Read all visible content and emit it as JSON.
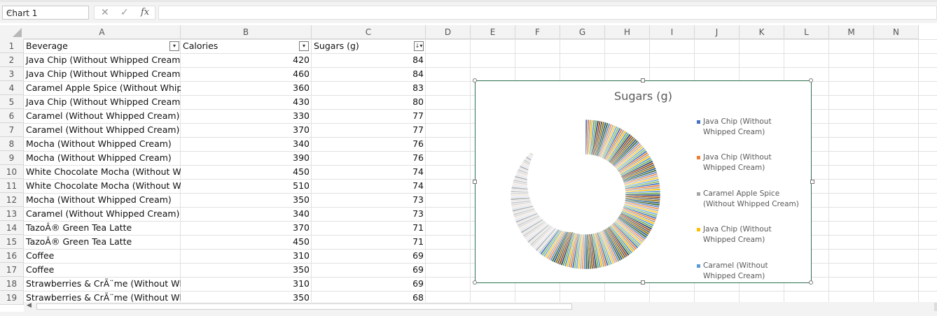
{
  "namebox": {
    "value": "Chart 1"
  },
  "formula": {
    "cancel_icon": "✕",
    "enter_icon": "✓",
    "fx": "fx",
    "value": ""
  },
  "columns": [
    "A",
    "B",
    "C",
    "D",
    "E",
    "F",
    "G",
    "H",
    "I",
    "J",
    "K",
    "L",
    "M",
    "N"
  ],
  "rows": [
    "1",
    "2",
    "3",
    "4",
    "5",
    "6",
    "7",
    "8",
    "9",
    "10",
    "11",
    "12",
    "13",
    "14",
    "15",
    "16",
    "17",
    "18",
    "19"
  ],
  "headers": {
    "beverage": "Beverage",
    "calories": "Calories",
    "sugars": "Sugars (g)"
  },
  "table": [
    {
      "beverage": "Java Chip (Without Whipped Cream)",
      "calories": "420",
      "sugars": "84"
    },
    {
      "beverage": "Java Chip (Without Whipped Cream)",
      "calories": "460",
      "sugars": "84"
    },
    {
      "beverage": "Caramel Apple Spice (Without Whipp",
      "calories": "360",
      "sugars": "83"
    },
    {
      "beverage": "Java Chip (Without Whipped Cream)",
      "calories": "430",
      "sugars": "80"
    },
    {
      "beverage": "Caramel (Without Whipped Cream)",
      "calories": "330",
      "sugars": "77"
    },
    {
      "beverage": "Caramel (Without Whipped Cream)",
      "calories": "370",
      "sugars": "77"
    },
    {
      "beverage": "Mocha (Without Whipped Cream)",
      "calories": "340",
      "sugars": "76"
    },
    {
      "beverage": "Mocha (Without Whipped Cream)",
      "calories": "390",
      "sugars": "76"
    },
    {
      "beverage": "White Chocolate Mocha (Without Wh",
      "calories": "450",
      "sugars": "74"
    },
    {
      "beverage": "White Chocolate Mocha (Without Wh",
      "calories": "510",
      "sugars": "74"
    },
    {
      "beverage": "Mocha (Without Whipped Cream)",
      "calories": "350",
      "sugars": "73"
    },
    {
      "beverage": "Caramel (Without Whipped Cream)",
      "calories": "340",
      "sugars": "73"
    },
    {
      "beverage": "TazoÂ® Green Tea Latte",
      "calories": "370",
      "sugars": "71"
    },
    {
      "beverage": "TazoÂ® Green Tea Latte",
      "calories": "450",
      "sugars": "71"
    },
    {
      "beverage": "Coffee",
      "calories": "310",
      "sugars": "69"
    },
    {
      "beverage": "Coffee",
      "calories": "350",
      "sugars": "69"
    },
    {
      "beverage": "Strawberries & CrÃ¨me (Without Wh",
      "calories": "310",
      "sugars": "69"
    },
    {
      "beverage": "Strawberries & CrÃ¨me (Without Wh",
      "calories": "350",
      "sugars": "68"
    }
  ],
  "chart_data": {
    "type": "pie",
    "title": "Sugars (g)",
    "series": [
      {
        "name": "Sugars (g)",
        "values": [
          84,
          84,
          83,
          80,
          77,
          77,
          76,
          76,
          74,
          74,
          73,
          73,
          71,
          71,
          69,
          69,
          69,
          68
        ]
      }
    ],
    "legend": [
      "Java Chip (Without Whipped Cream)",
      "Java Chip (Without Whipped Cream)",
      "Caramel Apple Spice (Without Whipped Cream)",
      "Java Chip (Without Whipped Cream)",
      "Caramel (Without Whipped Cream)"
    ],
    "legend_position": "right",
    "palette": [
      "#4472c4",
      "#ed7d31",
      "#a5a5a5",
      "#ffc000",
      "#5b9bd5",
      "#70ad47",
      "#264478",
      "#9e480e",
      "#636363",
      "#997300",
      "#255e91",
      "#43682b",
      "#698ed0",
      "#f1975a",
      "#b7b7b7",
      "#ffcd33",
      "#7cafdd",
      "#8cc168"
    ]
  },
  "scrollbar": {
    "left_arrow": "◀"
  }
}
